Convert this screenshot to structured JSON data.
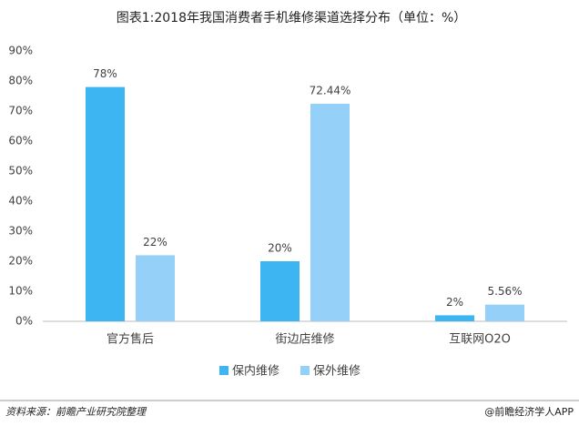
{
  "chart_data": {
    "type": "bar",
    "title": "图表1:2018年我国消费者手机维修渠道选择分布（单位：%）",
    "categories": [
      "官方售后",
      "街边店维修",
      "互联网O2O"
    ],
    "series": [
      {
        "name": "保内维修",
        "color": "#3db5f2",
        "values": [
          78,
          20,
          2
        ],
        "value_labels": [
          "78%",
          "20%",
          "2%"
        ]
      },
      {
        "name": "保外维修",
        "color": "#95d0f8",
        "values": [
          22,
          72.44,
          5.56
        ],
        "value_labels": [
          "22%",
          "72.44%",
          "5.56%"
        ]
      }
    ],
    "ylim": [
      0,
      90
    ],
    "yticks": [
      {
        "value": 0,
        "label": "0%"
      },
      {
        "value": 10,
        "label": "10%"
      },
      {
        "value": 20,
        "label": "20%"
      },
      {
        "value": 30,
        "label": "30%"
      },
      {
        "value": 40,
        "label": "40%"
      },
      {
        "value": 50,
        "label": "50%"
      },
      {
        "value": 60,
        "label": "60%"
      },
      {
        "value": 70,
        "label": "70%"
      },
      {
        "value": 80,
        "label": "80%"
      },
      {
        "value": 90,
        "label": "90%"
      }
    ],
    "grid": false,
    "legend": "bottom",
    "source": "资料来源：前瞻产业研究院整理",
    "credit": "@前瞻经济学人APP"
  }
}
